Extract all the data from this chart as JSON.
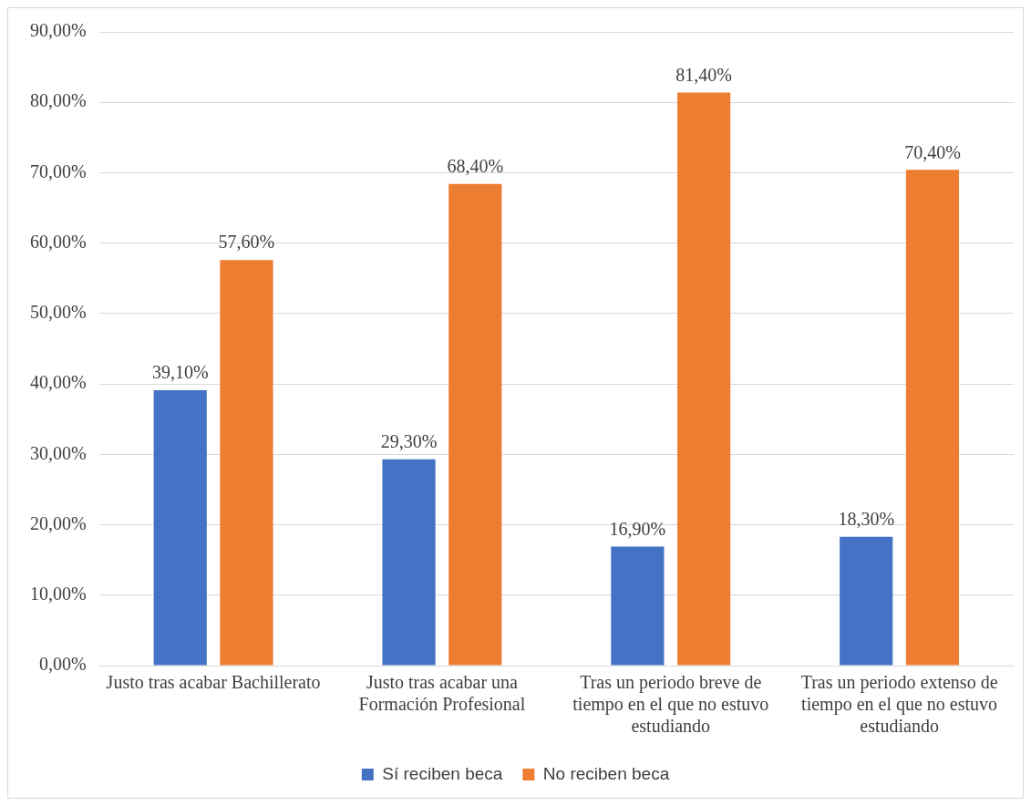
{
  "chart_data": {
    "type": "bar",
    "categories": [
      "Justo tras acabar Bachillerato",
      "Justo tras acabar una Formación Profesional",
      "Tras un periodo breve de tiempo en el que no estuvo estudiando",
      "Tras un periodo extenso de tiempo en el que no estuvo estudiando"
    ],
    "series": [
      {
        "name": "Sí reciben beca",
        "color": "#4472c4",
        "values": [
          39.1,
          29.3,
          16.9,
          18.3
        ],
        "value_labels": [
          "39,10%",
          "29,30%",
          "16,90%",
          "18,30%"
        ]
      },
      {
        "name": "No reciben beca",
        "color": "#ed7d31",
        "values": [
          57.6,
          68.4,
          81.4,
          70.4
        ],
        "value_labels": [
          "57,60%",
          "68,40%",
          "81,40%",
          "70,40%"
        ]
      }
    ],
    "ylim": [
      0,
      90
    ],
    "yticks": [
      {
        "value": 0,
        "label": "0,00%"
      },
      {
        "value": 10,
        "label": "10,00%"
      },
      {
        "value": 20,
        "label": "20,00%"
      },
      {
        "value": 30,
        "label": "30,00%"
      },
      {
        "value": 40,
        "label": "40,00%"
      },
      {
        "value": 50,
        "label": "50,00%"
      },
      {
        "value": 60,
        "label": "60,00%"
      },
      {
        "value": 70,
        "label": "70,00%"
      },
      {
        "value": 80,
        "label": "80,00%"
      },
      {
        "value": 90,
        "label": "90,00%"
      }
    ],
    "grid": "y",
    "legend": "bottom"
  }
}
